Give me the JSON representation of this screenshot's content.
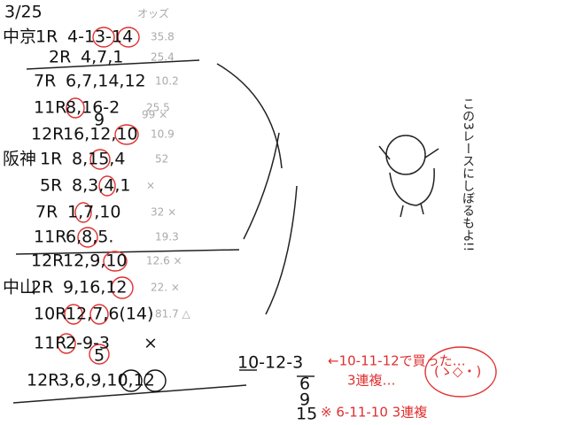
{
  "date": "3/25",
  "odds_header": "オッズ",
  "rows": [
    {
      "venue": "中京",
      "race": "1R",
      "picks": "4-13-14",
      "note": "35.8"
    },
    {
      "race": "2R",
      "picks": "4,7,1",
      "note": "25.4"
    },
    {
      "race": "7R",
      "picks": "6,7,14,12",
      "note": "10.2"
    },
    {
      "race": "11R",
      "picks": "8,16-2",
      "sub": "9",
      "note": "25.5",
      "sub_note": "99 ×"
    },
    {
      "race": "12R",
      "picks": "16,12,10",
      "note": "10.9"
    },
    {
      "venue": "阪神",
      "race": "1R",
      "picks": "8,15,4",
      "note": "52"
    },
    {
      "race": "5R",
      "picks": "8,3,4,1",
      "note": "×"
    },
    {
      "race": "7R",
      "picks": "1,7,10",
      "note": "32 ×"
    },
    {
      "race": "11R",
      "picks": "6,8,5.",
      "note": "19.3"
    },
    {
      "race": "12R",
      "picks": "12,9,10",
      "note": "12.6 ×"
    },
    {
      "venue": "中山",
      "race": "2R",
      "picks": "9,16,12",
      "note": "22. ×"
    },
    {
      "race": "10R",
      "picks": "12,7,6(14)",
      "note": "81.7 △"
    },
    {
      "race": "11R",
      "picks": "2-9-3",
      "sub": "5",
      "sub_note": "×"
    },
    {
      "race": "12R",
      "picks": "3,6,9,10,12"
    }
  ],
  "formation": {
    "first": "10-12-3",
    "second": "6",
    "third": "9",
    "fourth": "15"
  },
  "red_notes": [
    "←10-11-12で買った…",
    "3連複…",
    "※ 6-11-10 3連複"
  ],
  "vertical_note": "この3レースにしぼるもよ!!",
  "face_note": "(ゝ◇・)"
}
